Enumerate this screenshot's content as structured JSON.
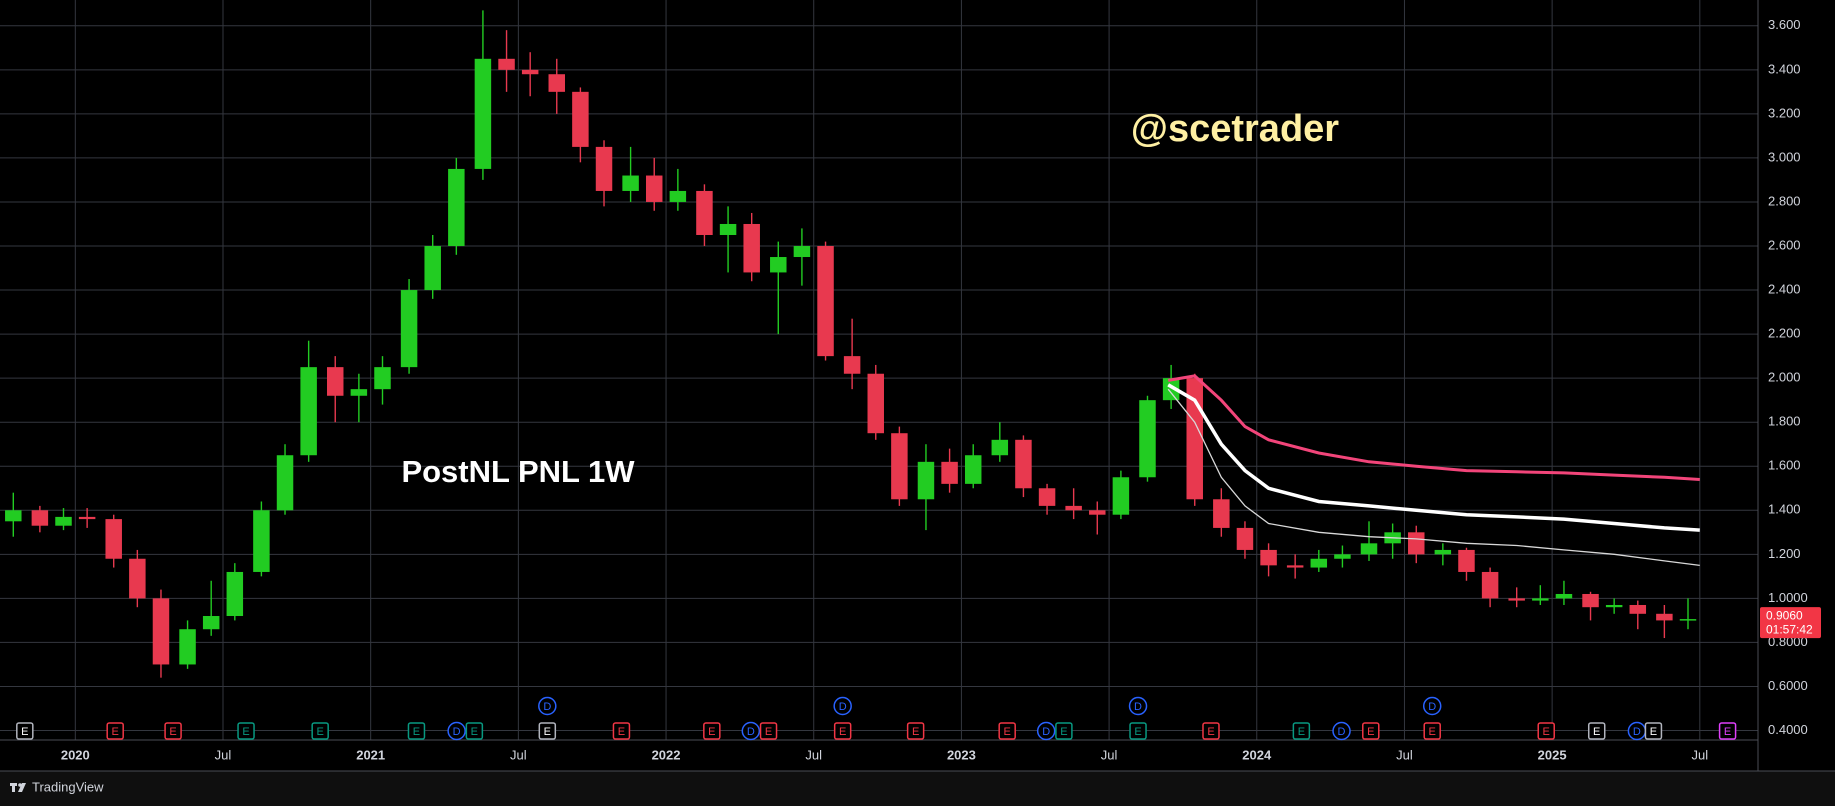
{
  "chart_data": {
    "type": "candlestick",
    "title": "PostNL PNL 1W",
    "watermark": "@scetrader",
    "colors": {
      "up": "#22cc22",
      "down": "#e8394f"
    },
    "x": [
      2019.79,
      2019.88,
      2019.96,
      2020.04,
      2020.13,
      2020.21,
      2020.29,
      2020.38,
      2020.46,
      2020.54,
      2020.63,
      2020.71,
      2020.79,
      2020.88,
      2020.96,
      2021.04,
      2021.13,
      2021.21,
      2021.29,
      2021.38,
      2021.46,
      2021.54,
      2021.63,
      2021.71,
      2021.79,
      2021.88,
      2021.96,
      2022.04,
      2022.13,
      2022.21,
      2022.29,
      2022.38,
      2022.46,
      2022.54,
      2022.63,
      2022.71,
      2022.79,
      2022.88,
      2022.96,
      2023.04,
      2023.13,
      2023.21,
      2023.29,
      2023.38,
      2023.46,
      2023.54,
      2023.63,
      2023.71,
      2023.79,
      2023.88,
      2023.96,
      2024.04,
      2024.13,
      2024.21,
      2024.29,
      2024.38,
      2024.46,
      2024.54,
      2024.63,
      2024.71,
      2024.79,
      2024.88,
      2024.96,
      2025.04,
      2025.13,
      2025.21,
      2025.29,
      2025.38,
      2025.46
    ],
    "open": [
      1.35,
      1.4,
      1.33,
      1.37,
      1.36,
      1.18,
      1.0,
      0.7,
      0.86,
      0.92,
      1.12,
      1.4,
      1.65,
      2.05,
      1.92,
      1.95,
      2.05,
      2.4,
      2.6,
      2.95,
      3.45,
      3.4,
      3.38,
      3.3,
      3.05,
      2.85,
      2.92,
      2.8,
      2.85,
      2.65,
      2.7,
      2.48,
      2.55,
      2.6,
      2.1,
      2.02,
      1.75,
      1.45,
      1.62,
      1.52,
      1.65,
      1.72,
      1.5,
      1.42,
      1.4,
      1.38,
      1.55,
      1.9,
      2.0,
      1.45,
      1.32,
      1.22,
      1.15,
      1.14,
      1.18,
      1.2,
      1.25,
      1.3,
      1.2,
      1.22,
      1.12,
      1.0,
      0.99,
      1.0,
      1.02,
      0.96,
      0.97,
      0.93,
      0.9
    ],
    "high": [
      1.48,
      1.42,
      1.41,
      1.41,
      1.38,
      1.22,
      1.04,
      0.9,
      1.08,
      1.16,
      1.44,
      1.7,
      2.17,
      2.1,
      2.02,
      2.1,
      2.45,
      2.65,
      3.0,
      3.67,
      3.58,
      3.48,
      3.45,
      3.32,
      3.08,
      3.05,
      3.0,
      2.95,
      2.88,
      2.78,
      2.75,
      2.62,
      2.68,
      2.62,
      2.27,
      2.06,
      1.78,
      1.7,
      1.68,
      1.7,
      1.8,
      1.74,
      1.52,
      1.5,
      1.44,
      1.58,
      1.92,
      2.06,
      2.02,
      1.5,
      1.35,
      1.25,
      1.2,
      1.22,
      1.24,
      1.35,
      1.34,
      1.33,
      1.25,
      1.23,
      1.14,
      1.05,
      1.06,
      1.08,
      1.03,
      1.0,
      0.99,
      0.97,
      1.0
    ],
    "low": [
      1.28,
      1.3,
      1.31,
      1.32,
      1.14,
      0.96,
      0.64,
      0.68,
      0.83,
      0.9,
      1.1,
      1.38,
      1.62,
      1.8,
      1.8,
      1.88,
      2.02,
      2.36,
      2.56,
      2.9,
      3.3,
      3.28,
      3.2,
      2.98,
      2.78,
      2.8,
      2.76,
      2.76,
      2.6,
      2.48,
      2.44,
      2.2,
      2.42,
      2.08,
      1.95,
      1.72,
      1.42,
      1.31,
      1.48,
      1.5,
      1.62,
      1.46,
      1.38,
      1.36,
      1.29,
      1.36,
      1.53,
      1.86,
      1.42,
      1.28,
      1.18,
      1.1,
      1.09,
      1.12,
      1.14,
      1.17,
      1.18,
      1.16,
      1.15,
      1.08,
      0.96,
      0.96,
      0.97,
      0.97,
      0.9,
      0.93,
      0.86,
      0.82,
      0.86
    ],
    "close": [
      1.4,
      1.33,
      1.37,
      1.36,
      1.18,
      1.0,
      0.7,
      0.86,
      0.92,
      1.12,
      1.4,
      1.65,
      2.05,
      1.92,
      1.95,
      2.05,
      2.4,
      2.6,
      2.95,
      3.45,
      3.4,
      3.38,
      3.3,
      3.05,
      2.85,
      2.92,
      2.8,
      2.85,
      2.65,
      2.7,
      2.48,
      2.55,
      2.6,
      2.1,
      2.02,
      1.75,
      1.45,
      1.62,
      1.52,
      1.65,
      1.72,
      1.5,
      1.42,
      1.4,
      1.38,
      1.55,
      1.9,
      2.0,
      1.45,
      1.32,
      1.22,
      1.15,
      1.14,
      1.18,
      1.2,
      1.25,
      1.3,
      1.2,
      1.22,
      1.12,
      1.0,
      0.99,
      1.0,
      1.02,
      0.96,
      0.97,
      0.93,
      0.9,
      0.906
    ],
    "lines": [
      {
        "color": "#f2457a",
        "x": [
          2023.7,
          2023.79,
          2023.88,
          2023.96,
          2024.04,
          2024.21,
          2024.38,
          2024.54,
          2024.71,
          2024.88,
          2025.04,
          2025.21,
          2025.38,
          2025.5
        ],
        "values": [
          1.99,
          2.01,
          1.9,
          1.78,
          1.72,
          1.66,
          1.62,
          1.6,
          1.58,
          1.575,
          1.57,
          1.56,
          1.55,
          1.54
        ]
      },
      {
        "color": "#ffffff",
        "x": [
          2023.7,
          2023.79,
          2023.88,
          2023.96,
          2024.04,
          2024.21,
          2024.38,
          2024.54,
          2024.71,
          2024.88,
          2025.04,
          2025.21,
          2025.38,
          2025.5
        ],
        "values": [
          1.97,
          1.9,
          1.7,
          1.58,
          1.5,
          1.44,
          1.42,
          1.4,
          1.38,
          1.37,
          1.36,
          1.34,
          1.32,
          1.31
        ]
      },
      {
        "color": "#d8d8d8",
        "x": [
          2023.7,
          2023.79,
          2023.88,
          2023.96,
          2024.04,
          2024.21,
          2024.38,
          2024.54,
          2024.71,
          2024.88,
          2025.04,
          2025.21,
          2025.38,
          2025.5
        ],
        "values": [
          1.95,
          1.8,
          1.55,
          1.42,
          1.34,
          1.3,
          1.28,
          1.27,
          1.25,
          1.24,
          1.22,
          1.2,
          1.17,
          1.15
        ]
      }
    ],
    "last_price": {
      "value": 0.906,
      "label": "0.9060",
      "color": "#f23645"
    },
    "countdown": "01:57:42",
    "xlim": [
      2019.745,
      2025.697
    ],
    "xticks": [
      2020,
      {
        "value": 2020.5,
        "label": "Jul"
      },
      2021,
      {
        "value": 2021.5,
        "label": "Jul"
      },
      2022,
      {
        "value": 2022.5,
        "label": "Jul"
      },
      2023,
      {
        "value": 2023.5,
        "label": "Jul"
      },
      2024,
      {
        "value": 2024.5,
        "label": "Jul"
      },
      2025,
      {
        "value": 2025.5,
        "label": "Jul"
      }
    ],
    "ylim": [
      0.357,
      3.717
    ],
    "yticks": [
      {
        "value": 0.4,
        "label": "0.4000"
      },
      {
        "value": 0.6,
        "label": "0.6000"
      },
      {
        "value": 0.8,
        "label": "0.8000"
      },
      {
        "value": 1.0,
        "label": "1.0000"
      },
      {
        "value": 1.2,
        "label": "1.200"
      },
      {
        "value": 1.4,
        "label": "1.400"
      },
      {
        "value": 1.6,
        "label": "1.600"
      },
      {
        "value": 1.8,
        "label": "1.800"
      },
      {
        "value": 2.0,
        "label": "2.000"
      },
      {
        "value": 2.2,
        "label": "2.200"
      },
      {
        "value": 2.4,
        "label": "2.400"
      },
      {
        "value": 2.6,
        "label": "2.600"
      },
      {
        "value": 2.8,
        "label": "2.800"
      },
      {
        "value": 3.0,
        "label": "3.000"
      },
      {
        "value": 3.2,
        "label": "3.200"
      },
      {
        "value": 3.4,
        "label": "3.400"
      },
      {
        "value": 3.6,
        "label": "3.600"
      }
    ],
    "grid": true,
    "events": [
      {
        "label": "E",
        "color": "#b2b5be",
        "x": 2019.829
      },
      {
        "label": "E",
        "color": "#f23645",
        "x": 2020.135
      },
      {
        "label": "E",
        "color": "#f23645",
        "x": 2020.331
      },
      {
        "label": "E",
        "color": "#089981",
        "x": 2020.578
      },
      {
        "label": "E",
        "color": "#089981",
        "x": 2020.829
      },
      {
        "label": "E",
        "color": "#089981",
        "x": 2021.155
      },
      {
        "label": "D",
        "color": "#2962ff",
        "x": 2021.291
      },
      {
        "label": "E",
        "color": "#089981",
        "x": 2021.351
      },
      {
        "label": "E",
        "color": "#b2b5be",
        "x": 2021.598
      },
      {
        "label": "D",
        "color": "#2962ff",
        "x": 2021.598
      },
      {
        "label": "E",
        "color": "#f23645",
        "x": 2021.849
      },
      {
        "label": "E",
        "color": "#f23645",
        "x": 2022.155
      },
      {
        "label": "D",
        "color": "#2962ff",
        "x": 2022.287
      },
      {
        "label": "E",
        "color": "#f23645",
        "x": 2022.347
      },
      {
        "label": "E",
        "color": "#f23645",
        "x": 2022.598
      },
      {
        "label": "D",
        "color": "#2962ff",
        "x": 2022.598
      },
      {
        "label": "E",
        "color": "#f23645",
        "x": 2022.845
      },
      {
        "label": "E",
        "color": "#f23645",
        "x": 2023.155
      },
      {
        "label": "D",
        "color": "#2962ff",
        "x": 2023.287
      },
      {
        "label": "E",
        "color": "#089981",
        "x": 2023.347
      },
      {
        "label": "E",
        "color": "#089981",
        "x": 2023.598
      },
      {
        "label": "D",
        "color": "#2962ff",
        "x": 2023.598
      },
      {
        "label": "E",
        "color": "#f23645",
        "x": 2023.845
      },
      {
        "label": "E",
        "color": "#089981",
        "x": 2024.151
      },
      {
        "label": "D",
        "color": "#2962ff",
        "x": 2024.287
      },
      {
        "label": "E",
        "color": "#f23645",
        "x": 2024.386
      },
      {
        "label": "E",
        "color": "#f23645",
        "x": 2024.594
      },
      {
        "label": "D",
        "color": "#2962ff",
        "x": 2024.594
      },
      {
        "label": "E",
        "color": "#f23645",
        "x": 2024.98
      },
      {
        "label": "E",
        "color": "#b2b5be",
        "x": 2025.151
      },
      {
        "label": "D",
        "color": "#2962ff",
        "x": 2025.287
      },
      {
        "label": "E",
        "color": "#b2b5be",
        "x": 2025.343
      },
      {
        "label": "E",
        "color": "#e040fb",
        "x": 2025.594
      }
    ]
  },
  "footer": {
    "brand": "TradingView"
  }
}
